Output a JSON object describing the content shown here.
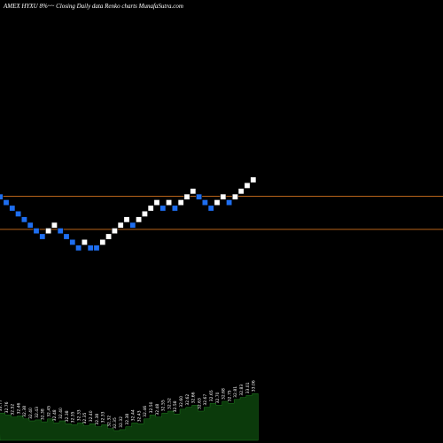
{
  "header": {
    "title": "AMEX  HYXU  8%~~ Closing Daily data  Renko  charts MunafaSutra.com"
  },
  "colors": {
    "background": "#000000",
    "up_brick": "#ffffff",
    "down_brick": "#1e6ef0",
    "level_line": "#b8631a",
    "volume_fill": "#0b3a0b",
    "volume_edge": "#1f7a1f"
  },
  "chart_data": {
    "type": "renko",
    "bricks": [
      {
        "dir": "down",
        "level": 0
      },
      {
        "dir": "down",
        "level": -1
      },
      {
        "dir": "down",
        "level": -2
      },
      {
        "dir": "down",
        "level": -3
      },
      {
        "dir": "down",
        "level": -4
      },
      {
        "dir": "down",
        "level": -5
      },
      {
        "dir": "down",
        "level": -6
      },
      {
        "dir": "down",
        "level": -7
      },
      {
        "dir": "up",
        "level": -6
      },
      {
        "dir": "up",
        "level": -5
      },
      {
        "dir": "down",
        "level": -6
      },
      {
        "dir": "down",
        "level": -7
      },
      {
        "dir": "down",
        "level": -8
      },
      {
        "dir": "down",
        "level": -9
      },
      {
        "dir": "up",
        "level": -8
      },
      {
        "dir": "down",
        "level": -9
      },
      {
        "dir": "down",
        "level": -9
      },
      {
        "dir": "up",
        "level": -8
      },
      {
        "dir": "up",
        "level": -7
      },
      {
        "dir": "up",
        "level": -6
      },
      {
        "dir": "up",
        "level": -5
      },
      {
        "dir": "up",
        "level": -4
      },
      {
        "dir": "down",
        "level": -5
      },
      {
        "dir": "up",
        "level": -4
      },
      {
        "dir": "up",
        "level": -3
      },
      {
        "dir": "up",
        "level": -2
      },
      {
        "dir": "up",
        "level": -1
      },
      {
        "dir": "down",
        "level": -2
      },
      {
        "dir": "up",
        "level": -1
      },
      {
        "dir": "down",
        "level": -2
      },
      {
        "dir": "up",
        "level": -1
      },
      {
        "dir": "up",
        "level": 0
      },
      {
        "dir": "up",
        "level": 1
      },
      {
        "dir": "down",
        "level": 0
      },
      {
        "dir": "down",
        "level": -1
      },
      {
        "dir": "down",
        "level": -2
      },
      {
        "dir": "up",
        "level": -1
      },
      {
        "dir": "up",
        "level": 0
      },
      {
        "dir": "down",
        "level": -1
      },
      {
        "dir": "up",
        "level": 0
      },
      {
        "dir": "up",
        "level": 1
      },
      {
        "dir": "up",
        "level": 2
      },
      {
        "dir": "up",
        "level": 3
      }
    ],
    "level_lines": [
      0,
      -6
    ],
    "price_labels": [
      "33.77",
      "32.76",
      "32.52",
      "32.46",
      "32.38",
      "32.40",
      "32.43",
      "32.38",
      "32.45",
      "32.48",
      "32.40",
      "32.38",
      "32.35",
      "32.33",
      "32.35",
      "32.40",
      "32.38",
      "32.33",
      "32.32",
      "32.35",
      "32.32",
      "32.38",
      "32.44",
      "32.43",
      "32.46",
      "32.50",
      "32.48",
      "32.55",
      "32.52",
      "32.58",
      "32.60",
      "32.62",
      "32.66",
      "32.63",
      "32.67",
      "32.65",
      "32.70",
      "32.68",
      "32.75",
      "32.81",
      "32.83",
      "33.01",
      "33.06"
    ],
    "volume": [
      28,
      26,
      24,
      25,
      22,
      20,
      21,
      19,
      22,
      18,
      20,
      17,
      16,
      18,
      15,
      17,
      14,
      16,
      12,
      10,
      11,
      14,
      18,
      17,
      22,
      26,
      24,
      28,
      30,
      27,
      32,
      34,
      36,
      30,
      34,
      38,
      36,
      40,
      38,
      42,
      44,
      46,
      48
    ]
  }
}
